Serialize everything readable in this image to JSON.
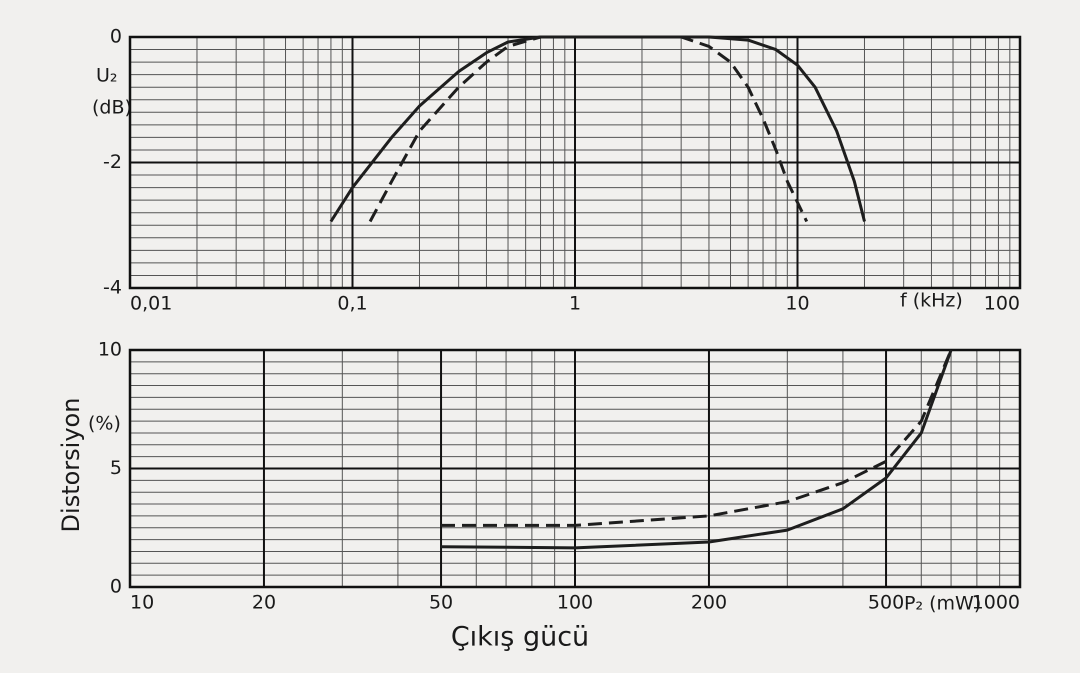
{
  "chart_data": [
    {
      "type": "line",
      "xlabel": "f (kHz)",
      "ylabel": "U₂",
      "ylabel_unit": "(dB)",
      "xlog": true,
      "xlim": [
        0.01,
        100
      ],
      "ylim": [
        -4,
        0
      ],
      "xticks": [
        {
          "value": 0.01,
          "label": "0,01"
        },
        {
          "value": 0.1,
          "label": "0,1"
        },
        1,
        10,
        100
      ],
      "yticks": [
        0,
        -2,
        -4
      ],
      "xminor": [
        0.02,
        0.03,
        0.04,
        0.05,
        0.06,
        0.07,
        0.08,
        0.09,
        0.2,
        0.3,
        0.4,
        0.5,
        0.6,
        0.7,
        0.8,
        0.9,
        2,
        3,
        4,
        5,
        6,
        7,
        8,
        9,
        20,
        30,
        40,
        50,
        60,
        70,
        80,
        90
      ],
      "yminor": [
        -3.8,
        -3.6,
        -3.4,
        -3.2,
        -3,
        -2.8,
        -2.6,
        -2.4,
        -2.2,
        -1.8,
        -1.6,
        -1.4,
        -1.2,
        -1,
        -0.8,
        -0.6,
        -0.4,
        -0.2
      ],
      "grid": true,
      "series": [
        {
          "color": "#1e1e1e",
          "dashed": false,
          "x": [
            0.08,
            0.1,
            0.15,
            0.2,
            0.3,
            0.4,
            0.5,
            0.7,
            1,
            2,
            4,
            6,
            8,
            10,
            12,
            15,
            18,
            20
          ],
          "values": [
            -2.94,
            -2.4,
            -1.6,
            -1.1,
            -0.55,
            -0.25,
            -0.08,
            0,
            0,
            0,
            0,
            -0.05,
            -0.2,
            -0.45,
            -0.8,
            -1.5,
            -2.3,
            -2.94
          ]
        },
        {
          "color": "#1e1e1e",
          "dashed": true,
          "x": [
            0.12,
            0.15,
            0.2,
            0.3,
            0.4,
            0.5,
            0.7,
            1,
            2,
            3,
            4,
            5,
            6,
            7,
            8,
            9,
            11
          ],
          "values": [
            -2.94,
            -2.3,
            -1.5,
            -0.8,
            -0.4,
            -0.15,
            0,
            0,
            0,
            0,
            -0.15,
            -0.4,
            -0.8,
            -1.3,
            -1.8,
            -2.3,
            -2.94
          ]
        }
      ]
    },
    {
      "type": "line",
      "xlabel": "Çıkış gücü",
      "xlabel_unit": "P₂ (mW)",
      "ylabel": "Distorsiyon",
      "ylabel_unit": "(%)",
      "xlog": true,
      "xlim": [
        10,
        1000
      ],
      "ylim": [
        0,
        10
      ],
      "xticks": [
        10,
        20,
        50,
        100,
        200,
        500,
        1000
      ],
      "yticks": [
        0,
        5,
        10
      ],
      "xminor": [
        30,
        40,
        60,
        70,
        80,
        90,
        300,
        400,
        600,
        700,
        800,
        900
      ],
      "yminor": [
        0.5,
        1,
        1.5,
        2,
        2.5,
        3,
        3.5,
        4,
        4.5,
        5.5,
        6,
        6.5,
        7,
        7.5,
        8,
        8.5,
        9,
        9.5
      ],
      "grid": true,
      "series": [
        {
          "color": "#1e1e1e",
          "dashed": false,
          "x": [
            50,
            100,
            200,
            300,
            400,
            500,
            600,
            700
          ],
          "values": [
            1.7,
            1.65,
            1.9,
            2.4,
            3.3,
            4.6,
            6.5,
            10
          ]
        },
        {
          "color": "#1e1e1e",
          "dashed": true,
          "x": [
            50,
            100,
            200,
            300,
            400,
            500,
            600,
            700
          ],
          "values": [
            2.6,
            2.6,
            3.0,
            3.6,
            4.4,
            5.3,
            7,
            10
          ]
        }
      ]
    }
  ]
}
